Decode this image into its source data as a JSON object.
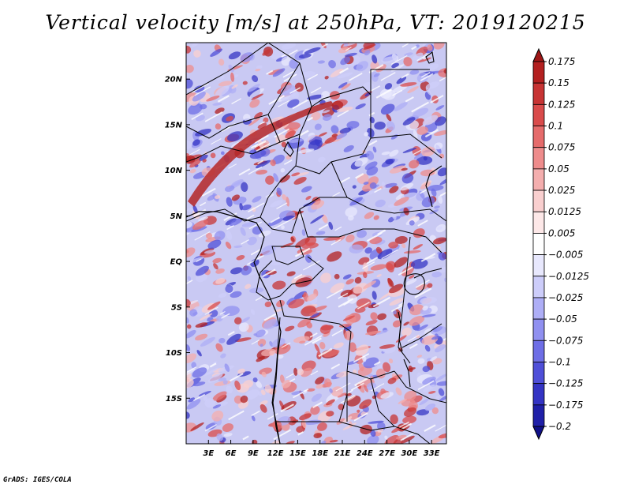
{
  "title": "Vertical velocity [m/s] at 250hPa, VT: 2019120215",
  "credit": "GrADS: IGES/COLA",
  "chart_data": {
    "type": "heatmap",
    "variable": "Vertical velocity",
    "units": "m/s",
    "level": "250hPa",
    "valid_time": "2019120215",
    "lon_range": [
      0,
      35
    ],
    "lat_range": [
      -20,
      24
    ],
    "x_ticks": [
      "3E",
      "6E",
      "9E",
      "12E",
      "15E",
      "18E",
      "21E",
      "24E",
      "27E",
      "30E",
      "33E"
    ],
    "x_tick_values": [
      3,
      6,
      9,
      12,
      15,
      18,
      21,
      24,
      27,
      30,
      33
    ],
    "y_ticks": [
      "20N",
      "15N",
      "10N",
      "5N",
      "EQ",
      "5S",
      "10S",
      "15S"
    ],
    "y_tick_values": [
      20,
      15,
      10,
      5,
      0,
      -5,
      -10,
      -15
    ],
    "colorbar": {
      "labels": [
        "0.175",
        "0.15",
        "0.125",
        "0.1",
        "0.075",
        "0.05",
        "0.025",
        "0.0125",
        "0.005",
        "-0.005",
        "-0.0125",
        "-0.025",
        "-0.05",
        "-0.075",
        "-0.1",
        "-0.125",
        "-0.175",
        "-0.2"
      ],
      "colors": [
        "#9e1616",
        "#b32020",
        "#c73434",
        "#d94b4b",
        "#e56b6b",
        "#ee8c8c",
        "#f4aeae",
        "#f9cfcf",
        "#fde8e8",
        "#ffffff",
        "#e8e8fd",
        "#cdcdfa",
        "#aeaef6",
        "#9090f0",
        "#6e6ee6",
        "#4f4fd8",
        "#3434c4",
        "#2020a8",
        "#101088"
      ]
    }
  }
}
